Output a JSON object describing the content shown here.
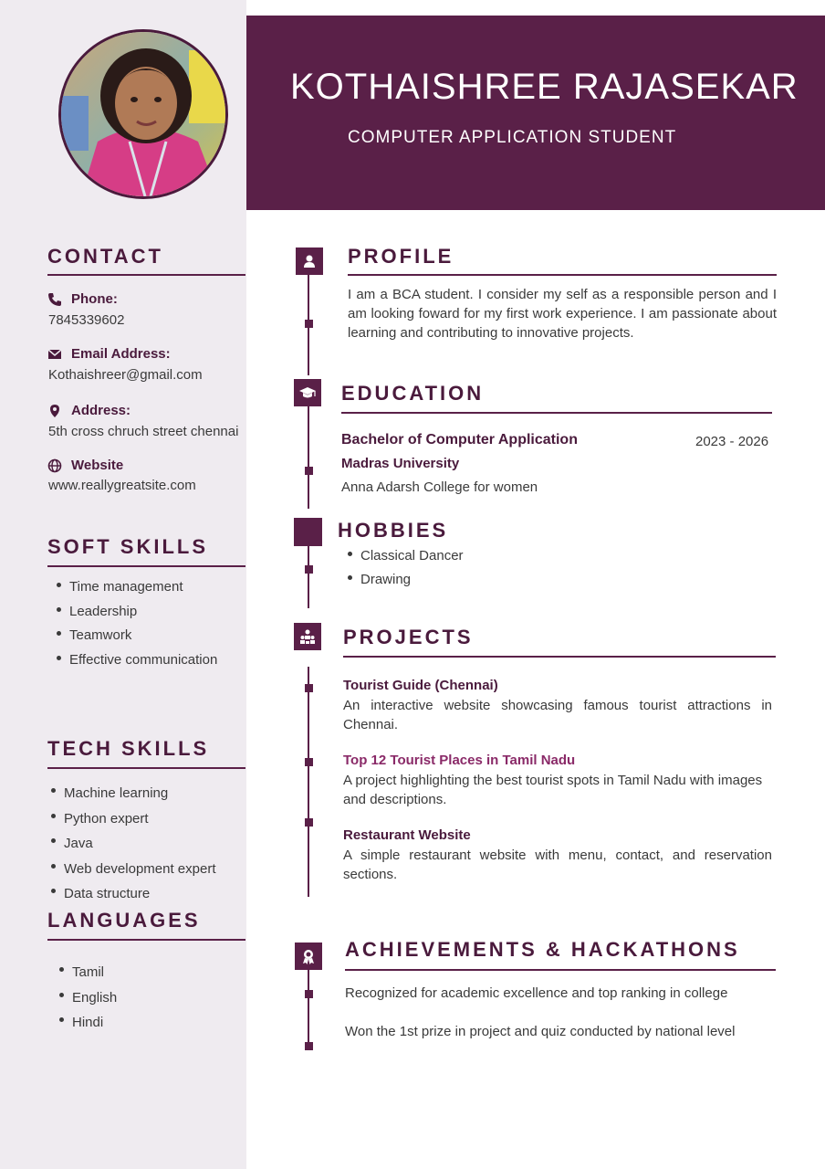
{
  "header": {
    "name": "KOTHAISHREE RAJASEKAR",
    "title": "COMPUTER APPLICATION STUDENT"
  },
  "colors": {
    "primary": "#5a2048",
    "sidebar_bg": "#efebf0",
    "heading": "#4a1a3c"
  },
  "contact": {
    "heading": "CONTACT",
    "items": [
      {
        "label": "Phone:",
        "value": "7845339602",
        "icon": "phone-icon"
      },
      {
        "label": "Email Address:",
        "value": "Kothaishreer@gmail.com",
        "icon": "envelope-icon"
      },
      {
        "label": "Address:",
        "value": "5th cross chruch street chennai",
        "icon": "map-pin-icon"
      },
      {
        "label": "Website",
        "value": "www.reallygreatsite.com",
        "icon": "globe-icon"
      }
    ]
  },
  "soft_skills": {
    "heading": "SOFT SKILLS",
    "items": [
      "Time management",
      "Leadership",
      "Teamwork",
      "Effective communication"
    ]
  },
  "tech_skills": {
    "heading": "TECH SKILLS",
    "items": [
      "Machine learning",
      "Python expert",
      "Java",
      "Web development expert",
      "Data structure"
    ]
  },
  "languages": {
    "heading": "LANGUAGES",
    "items": [
      "Tamil",
      "English",
      "Hindi"
    ]
  },
  "profile": {
    "heading": "PROFILE",
    "text": "I am a BCA student. I consider my self as a responsible person and I am looking foward for my first work experience. I am passionate about learning and contributing to innovative projects."
  },
  "education": {
    "heading": "EDUCATION",
    "degree": "Bachelor of Computer Application",
    "years": "2023 - 2026",
    "university": "Madras University",
    "college": "Anna Adarsh College for women"
  },
  "hobbies": {
    "heading": "HOBBIES",
    "items": [
      "Classical Dancer",
      "Drawing"
    ]
  },
  "projects": {
    "heading": "PROJECTS",
    "items": [
      {
        "title": "Tourist Guide (Chennai)",
        "description": "An interactive website showcasing famous tourist attractions in Chennai."
      },
      {
        "title": "Top 12 Tourist Places in Tamil Nadu",
        "description": "A project highlighting the best tourist spots in Tamil Nadu with images and descriptions."
      },
      {
        "title": "Restaurant Website",
        "description": "A simple restaurant website with menu, contact, and reservation sections."
      }
    ]
  },
  "achievements": {
    "heading": "ACHIEVEMENTS & HACKATHONS",
    "items": [
      "Recognized for academic excellence and top ranking in college",
      "Won the 1st prize in project and quiz conducted by national level"
    ]
  }
}
